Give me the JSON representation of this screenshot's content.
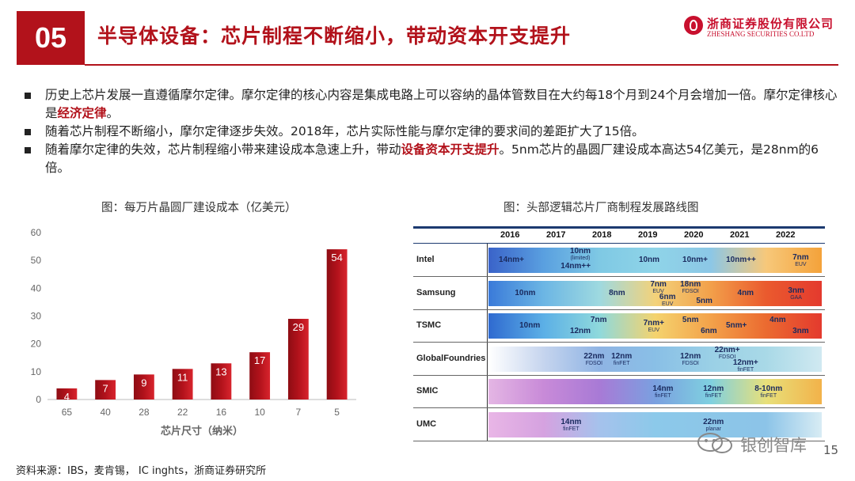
{
  "header": {
    "section_number": "05",
    "title": "半导体设备：芯片制程不断缩小，带动资本开支提升",
    "logo_cn": "浙商证券股份有限公司",
    "logo_en": "ZHESHANG SECURITIES CO.LTD",
    "accent": "#b2121b"
  },
  "bullets": [
    {
      "parts": [
        {
          "t": "历史上芯片发展一直遵循摩尔定律。摩尔定律的核心内容是集成电路上可以容纳的晶体管数目在大约每18个月到24个月会增加一倍。摩尔定律核心是",
          "hl": false
        },
        {
          "t": "经济定律",
          "hl": true
        },
        {
          "t": "。",
          "hl": false
        }
      ]
    },
    {
      "parts": [
        {
          "t": "随着芯片制程不断缩小，摩尔定律逐步失效。2018年，芯片实际性能与摩尔定律的要求间的差距扩大了15倍。",
          "hl": false
        }
      ]
    },
    {
      "parts": [
        {
          "t": "随着摩尔定律的失效，芯片制程缩小带来建设成本急速上升，带动",
          "hl": false
        },
        {
          "t": "设备资本开支提升",
          "hl": true
        },
        {
          "t": "。5nm芯片的晶圆厂建设成本高达54亿美元，是28nm的6倍。",
          "hl": false
        }
      ]
    }
  ],
  "left_caption": "图：每万片晶圆厂建设成本（亿美元）",
  "right_caption": "图：头部逻辑芯片厂商制程发展路线图",
  "chart_data": {
    "type": "bar",
    "categories": [
      "65",
      "40",
      "28",
      "22",
      "16",
      "10",
      "7",
      "5"
    ],
    "values": [
      4,
      7,
      9,
      11,
      13,
      17,
      29,
      54
    ],
    "xlabel": "芯片尺寸（纳米）",
    "ylabel": "",
    "ylim": [
      0,
      60
    ],
    "yticks": [
      0,
      10,
      20,
      30,
      40,
      50,
      60
    ],
    "bar_color": "#b2121b",
    "grid": false
  },
  "roadmap": {
    "years": [
      "2016",
      "2017",
      "2018",
      "2019",
      "2020",
      "2021",
      "2022"
    ],
    "rows": [
      {
        "name": "Intel",
        "gradient": [
          "#3a63c9",
          "#5aa0e0",
          "#7fc9e4",
          "#8fd4e8",
          "#8cc7e6",
          "#f7c87a",
          "#f4a23a"
        ],
        "nodes": [
          {
            "t": "14nm+",
            "s": "",
            "y": 2016
          },
          {
            "t": "10nm",
            "s": "(limited)",
            "y": 2017.5,
            "dy": -8
          },
          {
            "t": "14nm++",
            "s": "",
            "y": 2017.4,
            "dy": 8
          },
          {
            "t": "10nm",
            "s": "",
            "y": 2019
          },
          {
            "t": "10nm+",
            "s": "",
            "y": 2020
          },
          {
            "t": "10nm++",
            "s": "",
            "y": 2021
          },
          {
            "t": "7nm",
            "s": "EUV",
            "y": 2022.3
          }
        ]
      },
      {
        "name": "Samsung",
        "gradient": [
          "#3a7ad9",
          "#6cb6e4",
          "#9ed9e0",
          "#f3d27a",
          "#f2a04a",
          "#ea5a2e",
          "#e43a2e"
        ],
        "nodes": [
          {
            "t": "10nm",
            "s": "",
            "y": 2016.3
          },
          {
            "t": "8nm",
            "s": "",
            "y": 2018.3
          },
          {
            "t": "7nm",
            "s": "EUV",
            "y": 2019.2,
            "dy": -8
          },
          {
            "t": "6nm",
            "s": "EUV",
            "y": 2019.4,
            "dy": 8
          },
          {
            "t": "18nm",
            "s": "FDSOI",
            "y": 2019.9,
            "dy": -8
          },
          {
            "t": "5nm",
            "s": "",
            "y": 2020.2,
            "dy": 10
          },
          {
            "t": "4nm",
            "s": "",
            "y": 2021.1
          },
          {
            "t": "3nm",
            "s": "GAA",
            "y": 2022.2
          }
        ]
      },
      {
        "name": "TSMC",
        "gradient": [
          "#2f6ad0",
          "#5cb0e6",
          "#8fd9dc",
          "#f4d36e",
          "#f3a24a",
          "#eb6a30",
          "#e43a2e"
        ],
        "nodes": [
          {
            "t": "10nm",
            "s": "",
            "y": 2016.4
          },
          {
            "t": "7nm",
            "s": "",
            "y": 2017.9,
            "dy": -7
          },
          {
            "t": "12nm",
            "s": "",
            "y": 2017.5,
            "dy": 7
          },
          {
            "t": "7nm+",
            "s": "EUV",
            "y": 2019.1
          },
          {
            "t": "5nm",
            "s": "",
            "y": 2019.9,
            "dy": -7
          },
          {
            "t": "6nm",
            "s": "",
            "y": 2020.3,
            "dy": 7
          },
          {
            "t": "5nm+",
            "s": "",
            "y": 2020.9
          },
          {
            "t": "4nm",
            "s": "",
            "y": 2021.8,
            "dy": -7
          },
          {
            "t": "3nm",
            "s": "",
            "y": 2022.3,
            "dy": 7
          }
        ]
      },
      {
        "name": "GlobalFoundries",
        "gradient": [
          "#ffffff",
          "#c5d4ee",
          "#8fb4e4",
          "#89bfe6",
          "#9ad0e6",
          "#a9d9e7",
          "#d0e9f1"
        ],
        "nodes": [
          {
            "t": "22nm",
            "s": "FDSOI",
            "y": 2017.8
          },
          {
            "t": "12nm",
            "s": "finFET",
            "y": 2018.4
          },
          {
            "t": "12nm",
            "s": "FDSOI",
            "y": 2019.9
          },
          {
            "t": "22nm+",
            "s": "FDSOI",
            "y": 2020.7,
            "dy": -8
          },
          {
            "t": "12nm+",
            "s": "finFET",
            "y": 2021.1,
            "dy": 8
          }
        ]
      },
      {
        "name": "SMIC",
        "gradient": [
          "#e4b6e4",
          "#c88ad8",
          "#a87ad6",
          "#7aa0e0",
          "#7fd0e0",
          "#e8e07a",
          "#f2b24a"
        ],
        "nodes": [
          {
            "t": "14nm",
            "s": "finFET",
            "y": 2019.3
          },
          {
            "t": "12nm",
            "s": "finFET",
            "y": 2020.4
          },
          {
            "t": "8-10nm",
            "s": "finFET",
            "y": 2021.6
          }
        ]
      },
      {
        "name": "UMC",
        "gradient": [
          "#e9b6e6",
          "#d5a2e0",
          "#a5c2ec",
          "#8cc9ea",
          "#8cc6e8",
          "#8cc4e8",
          "#d8ecf4"
        ],
        "nodes": [
          {
            "t": "14nm",
            "s": "finFET",
            "y": 2017.3
          },
          {
            "t": "22nm",
            "s": "planar",
            "y": 2020.4
          }
        ]
      }
    ]
  },
  "source": "资料来源：IBS，麦肯锡， IC inghts，浙商证券研究所",
  "watermark": "银创智库",
  "page_number": "15"
}
